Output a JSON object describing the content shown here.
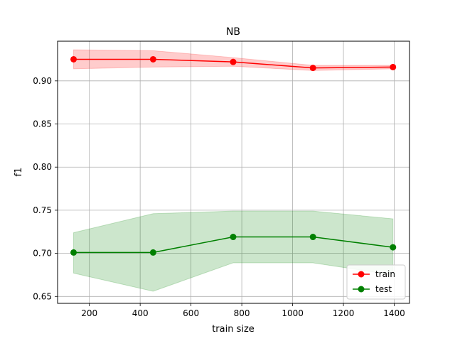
{
  "chart_data": {
    "type": "line",
    "title": "NB",
    "xlabel": "train size",
    "ylabel": "f1",
    "xlim": [
      75,
      1460
    ],
    "ylim": [
      0.642,
      0.946
    ],
    "xticks": [
      200,
      400,
      600,
      800,
      1000,
      1200,
      1400
    ],
    "yticks": [
      0.65,
      0.7,
      0.75,
      0.8,
      0.85,
      0.9
    ],
    "xtick_labels": [
      "200",
      "400",
      "600",
      "800",
      "1000",
      "1200",
      "1400"
    ],
    "ytick_labels": [
      "0.65",
      "0.70",
      "0.75",
      "0.80",
      "0.85",
      "0.90"
    ],
    "grid": true,
    "legend_position": "lower-right",
    "x": [
      138,
      451,
      766,
      1080,
      1395
    ],
    "series": [
      {
        "name": "train",
        "color": "#ff0000",
        "band_color": "#ff0000",
        "values": [
          0.925,
          0.925,
          0.922,
          0.915,
          0.916
        ],
        "lower": [
          0.914,
          0.916,
          0.917,
          0.912,
          0.914
        ],
        "upper": [
          0.936,
          0.935,
          0.927,
          0.918,
          0.918
        ]
      },
      {
        "name": "test",
        "color": "#008000",
        "band_color": "#008000",
        "values": [
          0.701,
          0.701,
          0.719,
          0.719,
          0.707
        ],
        "lower": [
          0.677,
          0.656,
          0.689,
          0.689,
          0.675
        ],
        "upper": [
          0.724,
          0.746,
          0.749,
          0.749,
          0.74
        ]
      }
    ]
  }
}
